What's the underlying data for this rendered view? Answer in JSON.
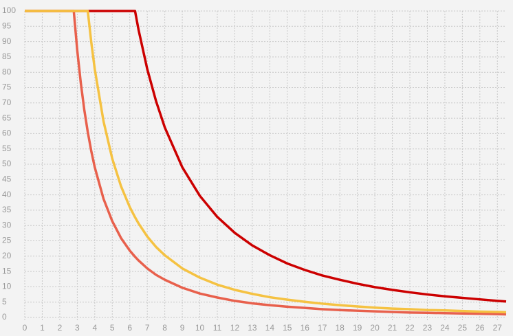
{
  "chart_data": {
    "type": "line",
    "x": [
      0,
      1,
      2,
      2.5,
      2.8,
      3,
      3.2,
      3.4,
      3.6,
      3.8,
      4,
      4.5,
      5,
      5.5,
      6,
      6.3,
      6.5,
      7,
      7.5,
      8,
      9,
      10,
      11,
      12,
      13,
      14,
      15,
      16,
      17,
      18,
      19,
      20,
      21,
      22,
      23,
      24,
      25,
      26,
      27,
      27.5
    ],
    "series": [
      {
        "color": "#e8604c",
        "values": [
          100,
          100,
          100,
          100,
          100,
          87.1,
          76.6,
          67.8,
          60.5,
          54.3,
          49,
          38.7,
          31.4,
          25.9,
          21.8,
          19.8,
          18.6,
          16,
          13.9,
          12.3,
          9.7,
          7.8,
          6.5,
          5.4,
          4.6,
          4,
          3.5,
          3.1,
          2.7,
          2.4,
          2.2,
          2,
          1.8,
          1.6,
          1.5,
          1.4,
          1.3,
          1.2,
          1.1,
          1.0
        ]
      },
      {
        "color": "#cc0000",
        "values": [
          100,
          100,
          100,
          100,
          100,
          100,
          100,
          100,
          100,
          100,
          100,
          100,
          100,
          100,
          100,
          100,
          93.9,
          81,
          70.6,
          62,
          49,
          39.7,
          32.8,
          27.6,
          23.5,
          20.3,
          17.6,
          15.5,
          13.7,
          12.3,
          11,
          9.9,
          9,
          8.2,
          7.5,
          6.9,
          6.4,
          5.9,
          5.4,
          5.2
        ]
      },
      {
        "color": "#f5c242",
        "values": [
          100,
          100,
          100,
          100,
          100,
          100,
          100,
          100,
          100,
          89.8,
          81,
          64,
          51.8,
          42.8,
          36,
          32.7,
          30.7,
          26.4,
          23,
          20.3,
          16,
          13,
          10.7,
          9,
          7.7,
          6.6,
          5.8,
          5.1,
          4.5,
          4,
          3.6,
          3.2,
          2.9,
          2.7,
          2.4,
          2.3,
          2.1,
          1.9,
          1.8,
          1.7
        ]
      }
    ],
    "xlim": [
      0,
      27.5
    ],
    "ylim": [
      0,
      100
    ],
    "xticks": [
      0,
      1,
      2,
      3,
      4,
      5,
      6,
      7,
      8,
      9,
      10,
      11,
      12,
      13,
      14,
      15,
      16,
      17,
      18,
      19,
      20,
      21,
      22,
      23,
      24,
      25,
      26,
      27
    ],
    "yticks": [
      0,
      5,
      10,
      15,
      20,
      25,
      30,
      35,
      40,
      45,
      50,
      55,
      60,
      65,
      70,
      75,
      80,
      85,
      90,
      95,
      100
    ],
    "grid": true
  }
}
